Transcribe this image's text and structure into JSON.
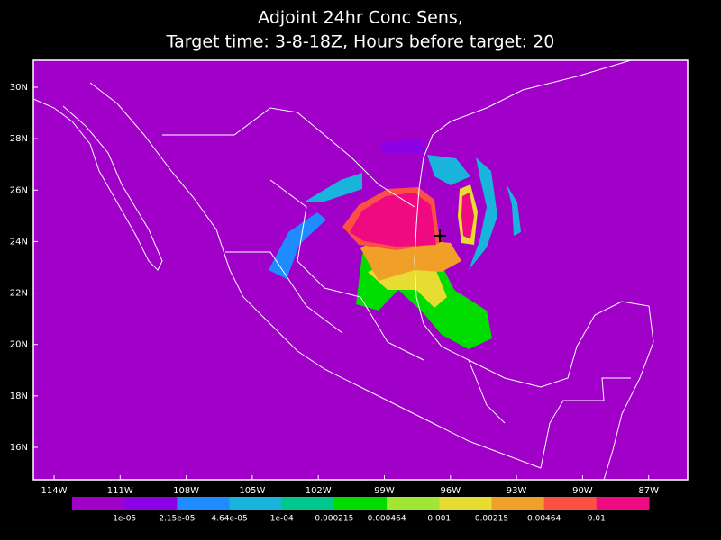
{
  "title": [
    "Adjoint 24hr Conc Sens,",
    "Target time: 3-8-18Z, Hours before target: 20"
  ],
  "lat_labels": [
    "30N",
    "28N",
    "26N",
    "24N",
    "22N",
    "20N",
    "18N",
    "16N"
  ],
  "lon_labels": [
    "114W",
    "111W",
    "108W",
    "105W",
    "102W",
    "99W",
    "96W",
    "93W",
    "90W",
    "87W"
  ],
  "colorbar": {
    "colors": [
      "#a000c8",
      "#8c00e6",
      "#1e8cff",
      "#18b4dc",
      "#00c88c",
      "#00dc00",
      "#a0e632",
      "#e6dc32",
      "#f0a028",
      "#fa5046",
      "#f00a82"
    ],
    "labels": [
      "1e-05",
      "2.15e-05",
      "4.64e-05",
      "1e-04",
      "0.000215",
      "0.000464",
      "0.001",
      "0.00215",
      "0.00464",
      "0.01"
    ]
  }
}
